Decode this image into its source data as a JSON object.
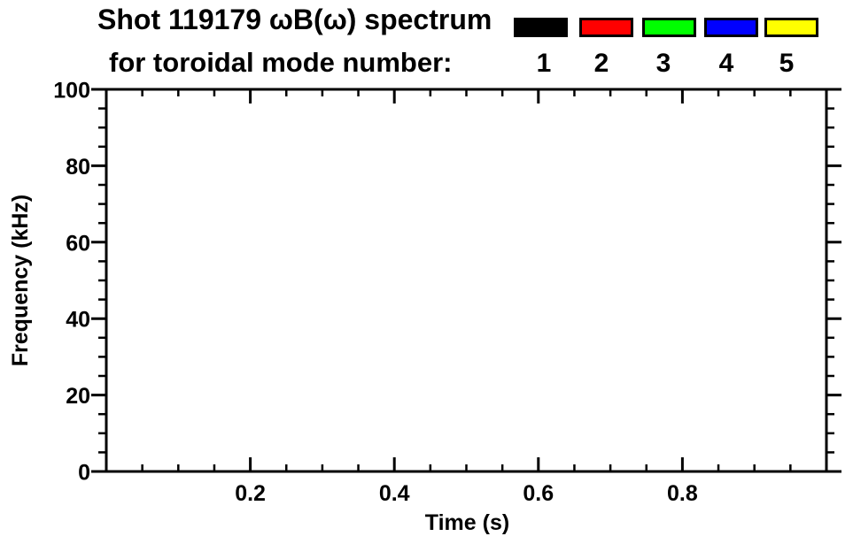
{
  "page": {
    "background": "#ffffff",
    "foreground": "#000000"
  },
  "title": {
    "line1": "Shot 119179 ωB(ω) spectrum",
    "line2": "for toroidal mode number:"
  },
  "legend": {
    "items": [
      {
        "label": "1",
        "color": "#000000"
      },
      {
        "label": "2",
        "color": "#ff0000"
      },
      {
        "label": "3",
        "color": "#00ff00"
      },
      {
        "label": "4",
        "color": "#0000ff"
      },
      {
        "label": "5",
        "color": "#ffff00"
      }
    ]
  },
  "chart_data": {
    "type": "heatmap",
    "title": "Shot 119179 ωB(ω) spectrum for toroidal mode number:",
    "xlabel": "Time (s)",
    "ylabel": "Frequency (kHz)",
    "xlim": [
      0.0,
      1.0
    ],
    "ylim": [
      0,
      100
    ],
    "x_major_ticks": [
      0.2,
      0.4,
      0.6,
      0.8
    ],
    "x_major_tick_labels": [
      "0.2",
      "0.4",
      "0.6",
      "0.8"
    ],
    "x_minor_tick_interval": 0.05,
    "y_major_ticks": [
      0,
      20,
      40,
      60,
      80,
      100
    ],
    "y_major_tick_labels": [
      "0",
      "20",
      "40",
      "60",
      "80",
      "100"
    ],
    "y_minor_tick_interval": 5,
    "grid": false,
    "legend_position": "top-right-above-plot",
    "legend_entries": [
      {
        "label": "1",
        "color": "#000000"
      },
      {
        "label": "2",
        "color": "#ff0000"
      },
      {
        "label": "3",
        "color": "#00ff00"
      },
      {
        "label": "4",
        "color": "#0000ff"
      },
      {
        "label": "5",
        "color": "#ffff00"
      }
    ],
    "series": [],
    "plot_area_content": "empty"
  }
}
